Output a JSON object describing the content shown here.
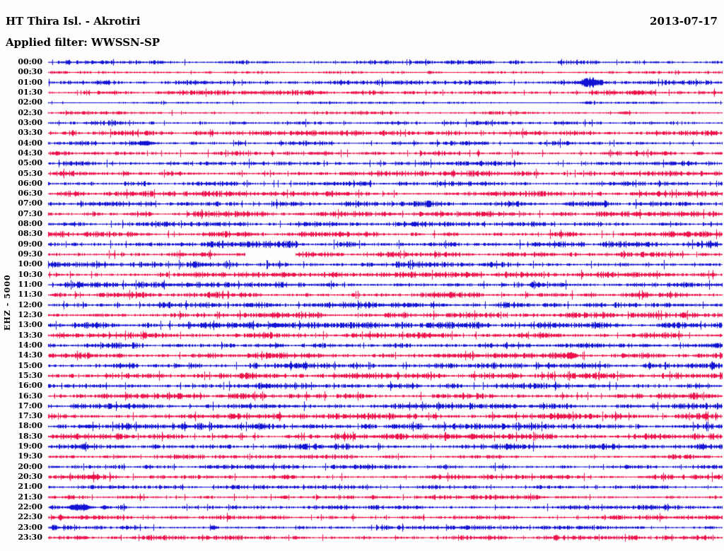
{
  "header": {
    "station_title": "HT Thira Isl. - Akrotiri",
    "date": "2013-07-17",
    "filter_label": "Applied filter: WWSSN-SP"
  },
  "axis": {
    "ylabel": "EHZ - 5000"
  },
  "chart_data": {
    "type": "line",
    "subtype": "helicorder_24h_seismogram",
    "title": "HT Thira Isl. - Akrotiri",
    "date": "2013-07-17",
    "filter": "WWSSN-SP",
    "ylabel": "EHZ - 5000",
    "minutes_per_row": 30,
    "row_count": 48,
    "grid": false,
    "legend_position": "none",
    "trace_colors": {
      "hour_rows": "#1112d4",
      "half_hour_rows": "#ee1049"
    },
    "notes": {
      "data_gap_row": "09:30",
      "largest_event_row": "01:00",
      "secondary_event_rows": [
        "04:00",
        "14:30",
        "22:00"
      ]
    },
    "rows": [
      {
        "t": "00:00",
        "c": "b",
        "a": 1.6,
        "ev": [
          {
            "p": 0.03,
            "w": 0.002,
            "a": 2.5
          }
        ]
      },
      {
        "t": "00:30",
        "c": "r",
        "a": 1.0,
        "ev": [
          {
            "p": 0.24,
            "w": 0.002,
            "a": 1.5
          },
          {
            "p": 0.565,
            "w": 0.002,
            "a": 2.5
          }
        ]
      },
      {
        "t": "01:00",
        "c": "b",
        "a": 1.7,
        "ev": [
          {
            "p": 0.802,
            "w": 0.009,
            "a": 5.5
          }
        ]
      },
      {
        "t": "01:30",
        "c": "r",
        "a": 1.9
      },
      {
        "t": "02:00",
        "c": "b",
        "a": 0.9,
        "ev": [
          {
            "p": 0.8,
            "w": 0.005,
            "a": 1.2
          }
        ]
      },
      {
        "t": "02:30",
        "c": "r",
        "a": 1.3,
        "ev": [
          {
            "p": 0.855,
            "w": 0.006,
            "a": 1.8
          }
        ]
      },
      {
        "t": "03:00",
        "c": "b",
        "a": 1.8
      },
      {
        "t": "03:30",
        "c": "r",
        "a": 2.0,
        "ev": [
          {
            "p": 0.985,
            "w": 0.003,
            "a": 2.0
          }
        ]
      },
      {
        "t": "04:00",
        "c": "b",
        "a": 1.8,
        "ev": [
          {
            "p": 0.145,
            "w": 0.008,
            "a": 3.2
          }
        ]
      },
      {
        "t": "04:30",
        "c": "r",
        "a": 2.0,
        "ev": [
          {
            "p": 0.012,
            "w": 0.003,
            "a": 2.6
          }
        ]
      },
      {
        "t": "05:00",
        "c": "b",
        "a": 1.9
      },
      {
        "t": "05:30",
        "c": "r",
        "a": 2.1
      },
      {
        "t": "06:00",
        "c": "b",
        "a": 1.9
      },
      {
        "t": "06:30",
        "c": "r",
        "a": 2.1
      },
      {
        "t": "07:00",
        "c": "b",
        "a": 2.0,
        "ev": [
          {
            "p": 0.565,
            "w": 0.002,
            "a": 3.5
          },
          {
            "p": 0.826,
            "w": 0.002,
            "a": 3.2
          }
        ]
      },
      {
        "t": "07:30",
        "c": "r",
        "a": 2.2
      },
      {
        "t": "08:00",
        "c": "b",
        "a": 2.0
      },
      {
        "t": "08:30",
        "c": "r",
        "a": 2.2
      },
      {
        "t": "09:00",
        "c": "b",
        "a": 2.6
      },
      {
        "t": "09:30",
        "c": "r",
        "a": 2.0,
        "gap": [
          0.292,
          0.366
        ]
      },
      {
        "t": "10:00",
        "c": "b",
        "a": 2.4
      },
      {
        "t": "10:30",
        "c": "r",
        "a": 2.2
      },
      {
        "t": "11:00",
        "c": "b",
        "a": 2.2,
        "ev": [
          {
            "p": 0.045,
            "w": 0.002,
            "a": 3.5
          }
        ]
      },
      {
        "t": "11:30",
        "c": "r",
        "a": 2.3
      },
      {
        "t": "12:00",
        "c": "b",
        "a": 2.4
      },
      {
        "t": "12:30",
        "c": "r",
        "a": 2.3
      },
      {
        "t": "13:00",
        "c": "b",
        "a": 2.4,
        "ev": [
          {
            "p": 0.337,
            "w": 0.008,
            "a": 3.0
          }
        ]
      },
      {
        "t": "13:30",
        "c": "r",
        "a": 2.3
      },
      {
        "t": "14:00",
        "c": "b",
        "a": 2.3,
        "ev": [
          {
            "p": 0.885,
            "w": 0.004,
            "a": 2.2
          }
        ]
      },
      {
        "t": "14:30",
        "c": "r",
        "a": 2.3,
        "ev": [
          {
            "p": 0.777,
            "w": 0.004,
            "a": 3.8
          }
        ]
      },
      {
        "t": "15:00",
        "c": "b",
        "a": 2.3,
        "ev": [
          {
            "p": 0.985,
            "w": 0.003,
            "a": 3.5
          }
        ]
      },
      {
        "t": "15:30",
        "c": "r",
        "a": 2.4
      },
      {
        "t": "16:00",
        "c": "b",
        "a": 2.3
      },
      {
        "t": "16:30",
        "c": "r",
        "a": 2.4
      },
      {
        "t": "17:00",
        "c": "b",
        "a": 2.3
      },
      {
        "t": "17:30",
        "c": "r",
        "a": 2.4
      },
      {
        "t": "18:00",
        "c": "b",
        "a": 2.4,
        "ev": [
          {
            "p": 0.06,
            "w": 0.008,
            "a": 2.2
          }
        ]
      },
      {
        "t": "18:30",
        "c": "r",
        "a": 2.2
      },
      {
        "t": "19:00",
        "c": "b",
        "a": 2.3
      },
      {
        "t": "19:30",
        "c": "r",
        "a": 1.7
      },
      {
        "t": "20:00",
        "c": "b",
        "a": 1.7,
        "ev": [
          {
            "p": 0.145,
            "w": 0.002,
            "a": 2.2
          }
        ]
      },
      {
        "t": "20:30",
        "c": "r",
        "a": 1.9,
        "ev": [
          {
            "p": 0.067,
            "w": 0.004,
            "a": 2.8
          }
        ]
      },
      {
        "t": "21:00",
        "c": "b",
        "a": 1.5
      },
      {
        "t": "21:30",
        "c": "r",
        "a": 1.8
      },
      {
        "t": "22:00",
        "c": "b",
        "a": 1.7,
        "ev": [
          {
            "p": 0.047,
            "w": 0.01,
            "a": 4.5
          },
          {
            "p": 0.084,
            "w": 0.004,
            "a": 2.5
          }
        ]
      },
      {
        "t": "22:30",
        "c": "r",
        "a": 1.8,
        "ev": [
          {
            "p": 0.018,
            "w": 0.002,
            "a": 3.5
          }
        ]
      },
      {
        "t": "23:00",
        "c": "b",
        "a": 1.7,
        "ev": [
          {
            "p": 0.008,
            "w": 0.002,
            "a": 3.5
          },
          {
            "p": 0.245,
            "w": 0.002,
            "a": 3.5
          }
        ]
      },
      {
        "t": "23:30",
        "c": "r",
        "a": 1.9,
        "ev": [
          {
            "p": 0.05,
            "w": 0.005,
            "a": 1.8
          }
        ]
      }
    ]
  }
}
